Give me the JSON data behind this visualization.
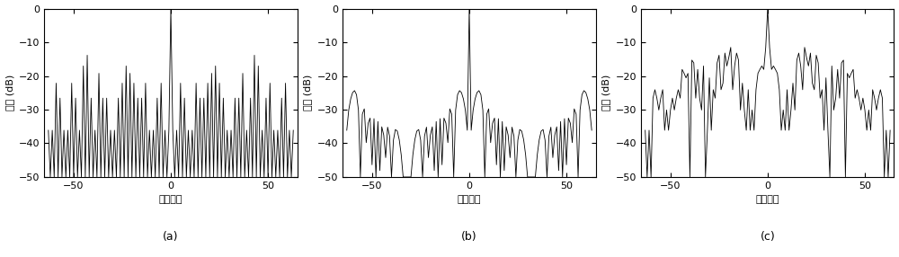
{
  "xlim": [
    -65,
    65
  ],
  "ylim": [
    -50,
    0
  ],
  "yticks": [
    0,
    -10,
    -20,
    -30,
    -40,
    -50
  ],
  "xticks": [
    -50,
    0,
    50
  ],
  "ylabel": "幅度 (dB)",
  "xlabel": "时延单位",
  "labels": [
    "(a)",
    "(b)",
    "(c)"
  ],
  "N": 64,
  "linewidth": 0.6,
  "color": "#000000",
  "figsize": [
    10.0,
    2.86
  ],
  "dpi": 100,
  "tick_fontsize": 8,
  "label_fontsize": 8,
  "sublabel_fontsize": 9
}
